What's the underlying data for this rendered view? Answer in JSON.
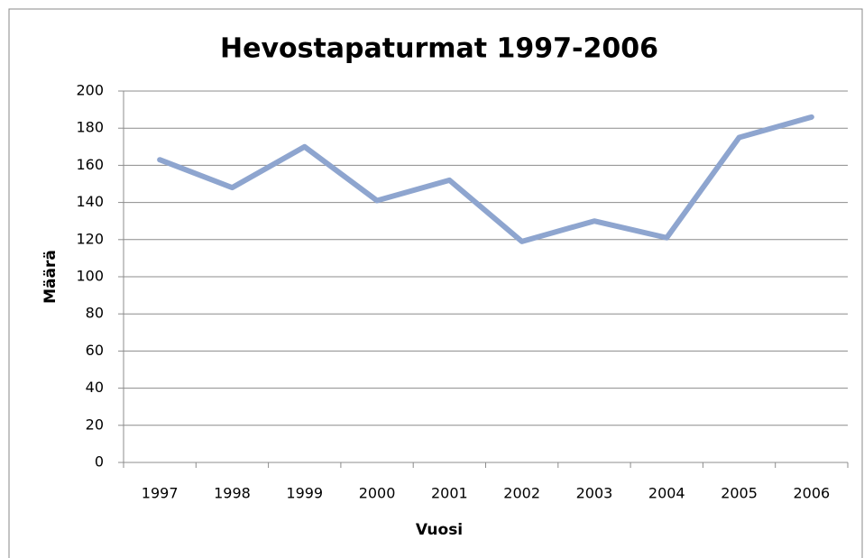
{
  "chart_data": {
    "type": "line",
    "title": "Hevostapaturmat 1997-2006",
    "x_label": "Vuosi",
    "y_label": "Määrä",
    "categories": [
      "1997",
      "1998",
      "1999",
      "2000",
      "2001",
      "2002",
      "2003",
      "2004",
      "2005",
      "2006"
    ],
    "values": [
      163,
      148,
      170,
      141,
      152,
      119,
      130,
      121,
      175,
      186
    ],
    "color": "#8ea5cf",
    "ylim": [
      0,
      200
    ],
    "yticks": [
      0,
      20,
      40,
      60,
      80,
      100,
      120,
      140,
      160,
      180,
      200
    ],
    "grid": true
  }
}
